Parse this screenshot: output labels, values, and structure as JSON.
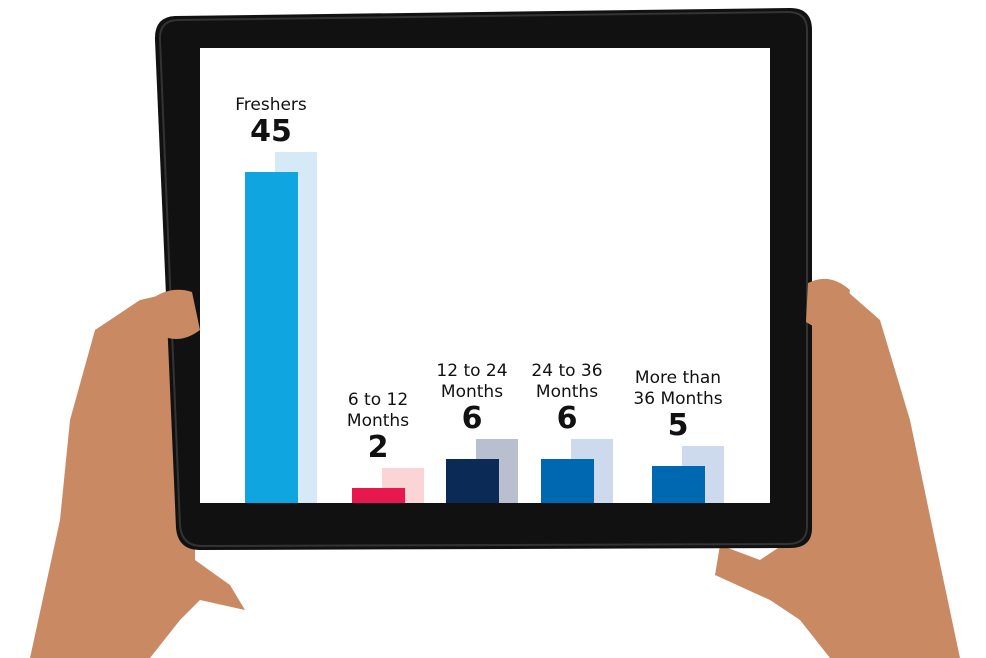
{
  "chart_data": {
    "type": "bar",
    "categories": [
      "Freshers",
      "6 to 12 Months",
      "12 to 24 Months",
      "24 to 36 Months",
      "More than 36 Months"
    ],
    "values": [
      45,
      2,
      6,
      6,
      5
    ],
    "colors": [
      "#0ea5e0",
      "#e8174d",
      "#0b2a55",
      "#0068b0",
      "#0068b0"
    ],
    "shadow_colors": [
      "#d6e9f7",
      "#fbd5d5",
      "#b9bfcf",
      "#cdd9ec",
      "#cdd9ec"
    ]
  }
}
